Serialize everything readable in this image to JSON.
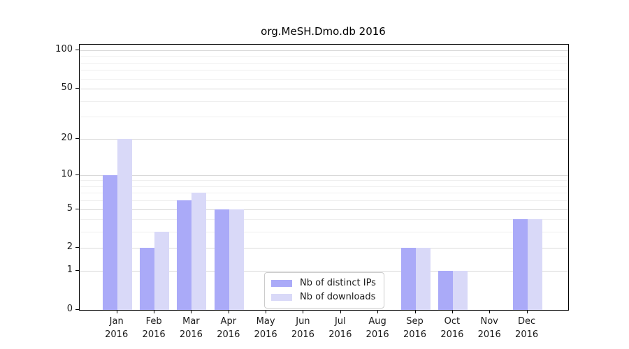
{
  "title": "org.MeSH.Dmo.db 2016",
  "chart_data": {
    "type": "bar",
    "title": "org.MeSH.Dmo.db 2016",
    "categories": [
      "Jan",
      "Feb",
      "Mar",
      "Apr",
      "May",
      "Jun",
      "Jul",
      "Aug",
      "Sep",
      "Oct",
      "Nov",
      "Dec"
    ],
    "category_sublabel": "2016",
    "series": [
      {
        "name": "Nb of distinct IPs",
        "color": "#aaaaf8",
        "values": [
          10,
          2,
          6,
          5,
          0,
          0,
          0,
          0,
          2,
          1,
          0,
          4
        ]
      },
      {
        "name": "Nb of downloads",
        "color": "#d9d9f8",
        "values": [
          20,
          3,
          7,
          5,
          0,
          0,
          0,
          0,
          2,
          1,
          0,
          4
        ]
      }
    ],
    "y_scale": "log10(1+x)",
    "ylim": [
      0,
      110
    ],
    "y_ticks": [
      0,
      1,
      2,
      5,
      10,
      20,
      50,
      100
    ],
    "y_minor_gridlines": [
      3,
      4,
      6,
      7,
      8,
      9,
      30,
      40,
      60,
      70,
      80,
      90
    ],
    "xlabel": "",
    "ylabel": "",
    "grid": "horizontal",
    "legend_position": "inside-bottom-center"
  },
  "colors": {
    "axis": "#000000",
    "grid_major": "#d9d9d9",
    "grid_minor": "#efefef",
    "background": "#ffffff",
    "legend_border": "#cccccc",
    "text": "#1a1a1a"
  }
}
